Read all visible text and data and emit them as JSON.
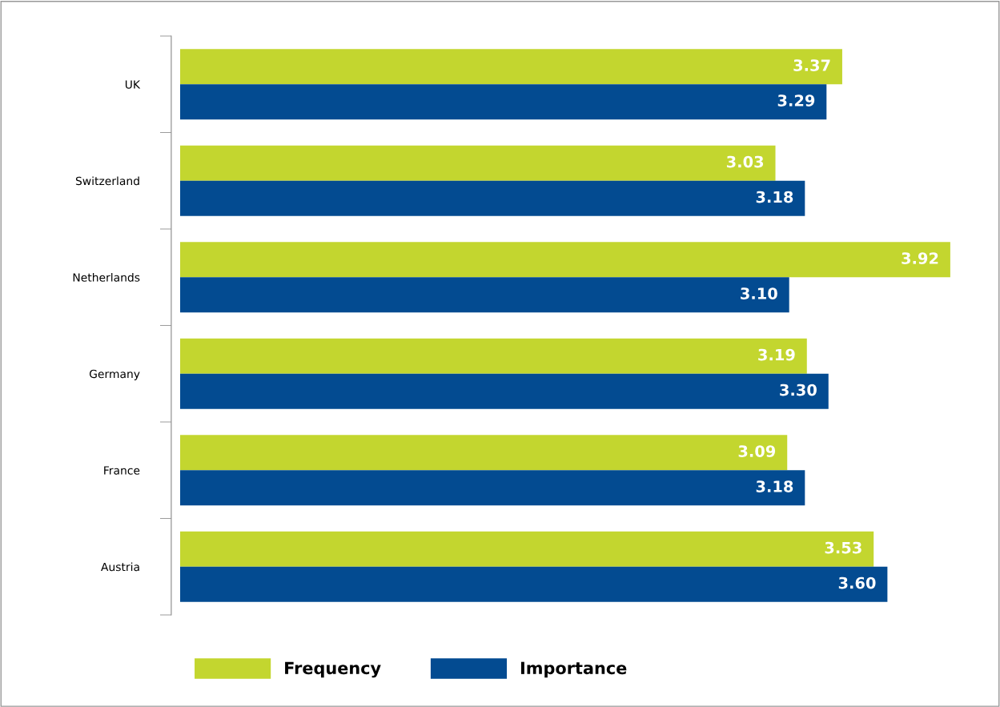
{
  "chart_data": {
    "type": "bar",
    "orientation": "horizontal",
    "categories": [
      "UK",
      "Switzerland",
      "Netherlands",
      "Germany",
      "France",
      "Austria"
    ],
    "series": [
      {
        "name": "Frequency",
        "color": "#c3d62f",
        "values": [
          3.37,
          3.03,
          3.92,
          3.19,
          3.09,
          3.53
        ],
        "value_labels": [
          "3.37",
          "3.03",
          "3.92",
          "3.19",
          "3.09",
          "3.53"
        ]
      },
      {
        "name": "Importance",
        "color": "#034b91",
        "values": [
          3.29,
          3.18,
          3.1,
          3.3,
          3.18,
          3.6
        ],
        "value_labels": [
          "3.29",
          "3.18",
          "3.10",
          "3.30",
          "3.18",
          "3.60"
        ]
      }
    ],
    "legend": "bottom",
    "grid": false,
    "tick_labels": "y"
  }
}
